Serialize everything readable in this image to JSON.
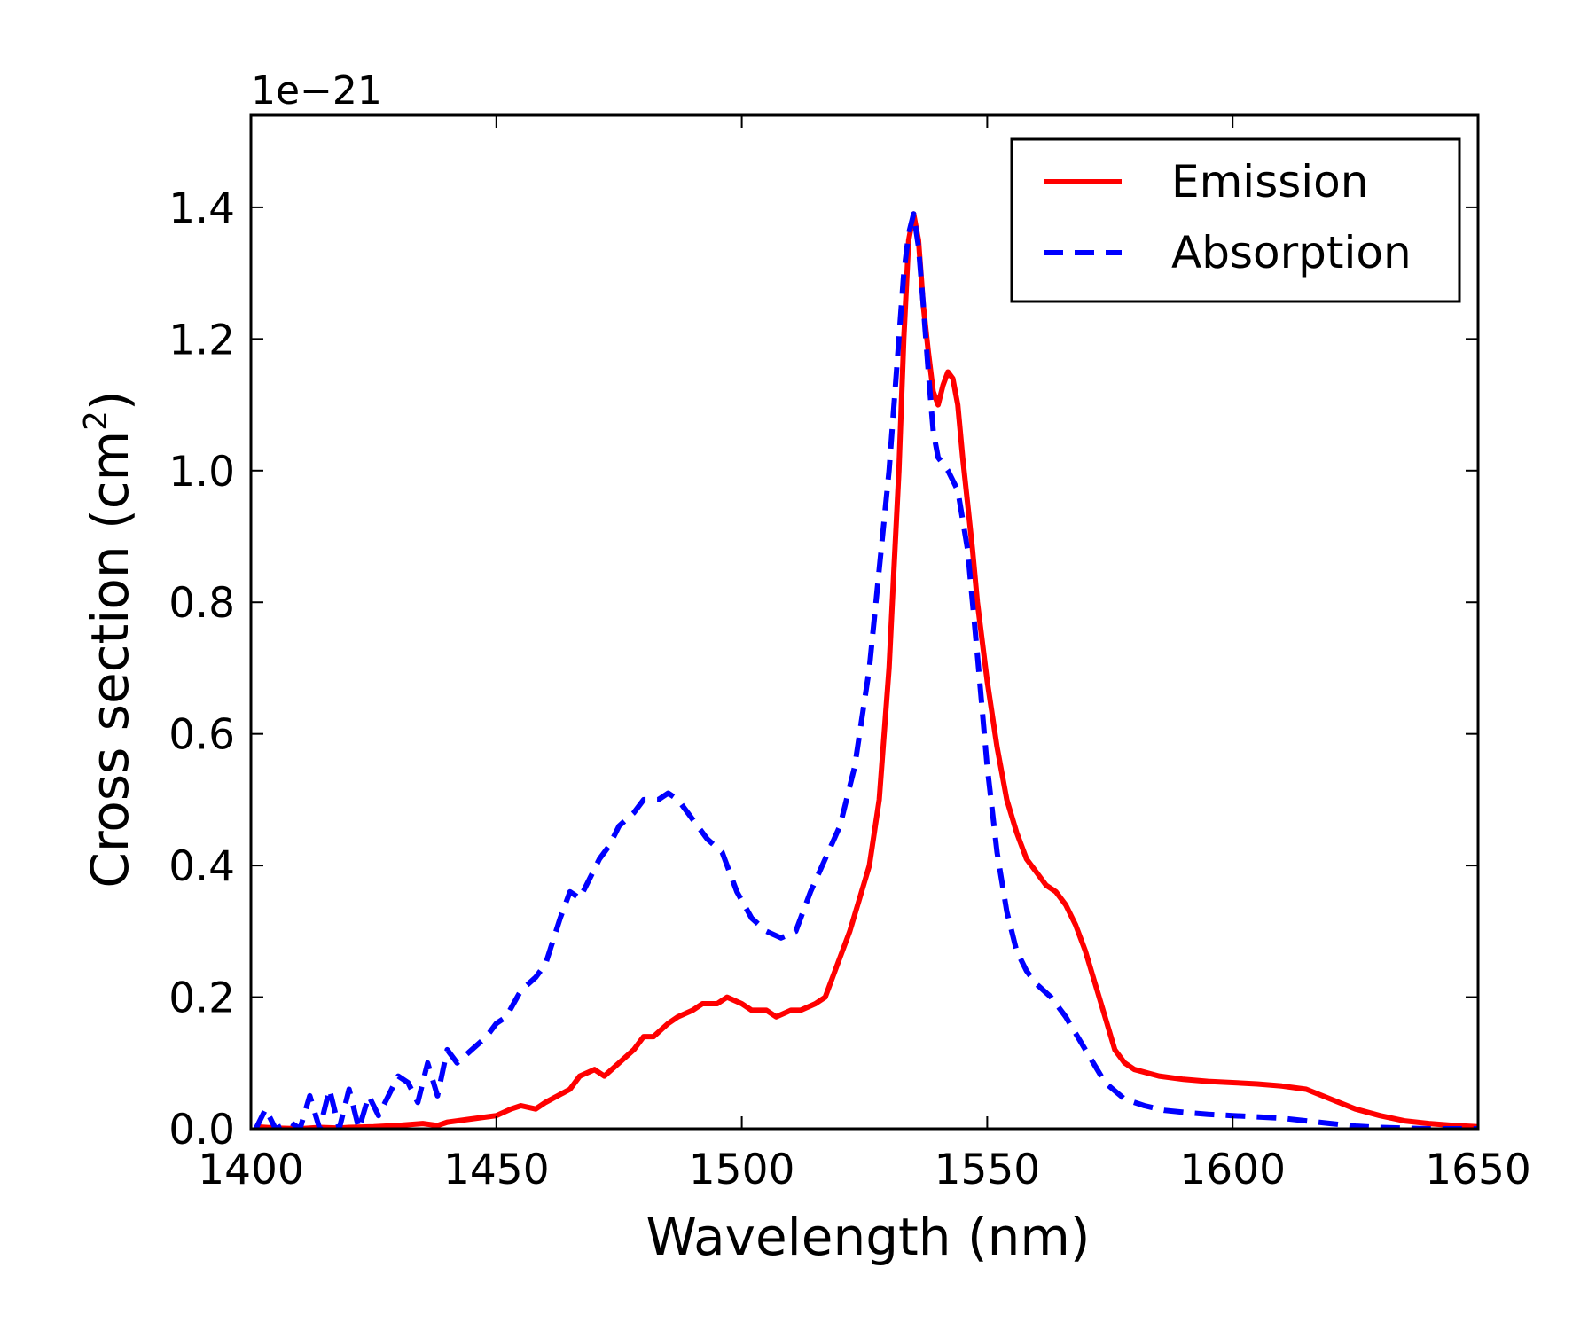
{
  "chart_data": {
    "type": "line",
    "title": "",
    "xlabel": "Wavelength (nm)",
    "ylabel_main": "Cross section (cm",
    "ylabel_sup": "2",
    "ylabel_close": ")",
    "offset_label": "1e−21",
    "xlim": [
      1400,
      1650
    ],
    "ylim": [
      0.0,
      1.54
    ],
    "xticks": [
      1400,
      1450,
      1500,
      1550,
      1600,
      1650
    ],
    "xtick_labels": [
      "1400",
      "1450",
      "1500",
      "1550",
      "1600",
      "1650"
    ],
    "yticks": [
      0.0,
      0.2,
      0.4,
      0.6,
      0.8,
      1.0,
      1.2,
      1.4
    ],
    "ytick_labels": [
      "0.0",
      "0.2",
      "0.4",
      "0.6",
      "0.8",
      "1.0",
      "1.2",
      "1.4"
    ],
    "legend_position": "top-right",
    "grid": false,
    "series": [
      {
        "name": "Emission",
        "color": "#ff0000",
        "style": "solid",
        "x": [
          1401,
          1405,
          1410,
          1414,
          1418,
          1420,
          1425,
          1430,
          1435,
          1438,
          1440,
          1445,
          1450,
          1453,
          1455,
          1458,
          1460,
          1465,
          1467,
          1470,
          1472,
          1475,
          1478,
          1480,
          1482,
          1485,
          1487,
          1490,
          1492,
          1495,
          1497,
          1500,
          1502,
          1505,
          1507,
          1510,
          1512,
          1515,
          1517,
          1520,
          1522,
          1524,
          1526,
          1528,
          1530,
          1531,
          1532,
          1533,
          1534,
          1535,
          1536,
          1537,
          1538,
          1539,
          1540,
          1541,
          1542,
          1543,
          1544,
          1545,
          1546,
          1547,
          1548,
          1550,
          1552,
          1554,
          1556,
          1558,
          1560,
          1562,
          1564,
          1566,
          1568,
          1570,
          1572,
          1574,
          1576,
          1578,
          1580,
          1585,
          1590,
          1595,
          1600,
          1605,
          1610,
          1615,
          1620,
          1625,
          1630,
          1635,
          1640,
          1645,
          1650
        ],
        "values": [
          0.003,
          0.001,
          0.0,
          0.002,
          0.001,
          0.002,
          0.003,
          0.005,
          0.008,
          0.005,
          0.01,
          0.015,
          0.02,
          0.03,
          0.035,
          0.03,
          0.04,
          0.06,
          0.08,
          0.09,
          0.08,
          0.1,
          0.12,
          0.14,
          0.14,
          0.16,
          0.17,
          0.18,
          0.19,
          0.19,
          0.2,
          0.19,
          0.18,
          0.18,
          0.17,
          0.18,
          0.18,
          0.19,
          0.2,
          0.26,
          0.3,
          0.35,
          0.4,
          0.5,
          0.7,
          0.85,
          1.0,
          1.2,
          1.35,
          1.39,
          1.35,
          1.25,
          1.18,
          1.12,
          1.1,
          1.13,
          1.15,
          1.14,
          1.1,
          1.02,
          0.95,
          0.88,
          0.8,
          0.68,
          0.58,
          0.5,
          0.45,
          0.41,
          0.39,
          0.37,
          0.36,
          0.34,
          0.31,
          0.27,
          0.22,
          0.17,
          0.12,
          0.1,
          0.09,
          0.08,
          0.075,
          0.072,
          0.07,
          0.068,
          0.065,
          0.06,
          0.045,
          0.03,
          0.02,
          0.012,
          0.008,
          0.005,
          0.003
        ]
      },
      {
        "name": "Absorption",
        "color": "#0000ff",
        "style": "dashed",
        "x": [
          1401,
          1403,
          1405,
          1408,
          1410,
          1412,
          1414,
          1416,
          1418,
          1420,
          1422,
          1424,
          1426,
          1428,
          1430,
          1432,
          1434,
          1436,
          1438,
          1440,
          1442,
          1445,
          1448,
          1450,
          1452,
          1455,
          1458,
          1460,
          1463,
          1465,
          1467,
          1469,
          1471,
          1473,
          1475,
          1478,
          1480,
          1483,
          1485,
          1487,
          1489,
          1491,
          1493,
          1496,
          1499,
          1502,
          1505,
          1508,
          1511,
          1514,
          1517,
          1520,
          1523,
          1526,
          1528,
          1530,
          1532,
          1533,
          1534,
          1535,
          1536,
          1537,
          1538,
          1539,
          1540,
          1542,
          1544,
          1546,
          1548,
          1550,
          1552,
          1554,
          1556,
          1558,
          1560,
          1563,
          1566,
          1570,
          1574,
          1578,
          1582,
          1586,
          1590,
          1595,
          1600,
          1605,
          1610,
          1615,
          1620,
          1625,
          1630,
          1635,
          1640,
          1645,
          1650
        ],
        "values": [
          0.0,
          0.03,
          0.0,
          0.01,
          0.0,
          0.05,
          0.0,
          0.06,
          0.0,
          0.06,
          0.0,
          0.05,
          0.02,
          0.05,
          0.08,
          0.07,
          0.04,
          0.1,
          0.05,
          0.12,
          0.1,
          0.12,
          0.14,
          0.16,
          0.17,
          0.21,
          0.23,
          0.25,
          0.32,
          0.36,
          0.35,
          0.38,
          0.41,
          0.43,
          0.46,
          0.48,
          0.5,
          0.5,
          0.51,
          0.5,
          0.48,
          0.46,
          0.44,
          0.42,
          0.36,
          0.32,
          0.3,
          0.29,
          0.3,
          0.36,
          0.41,
          0.46,
          0.55,
          0.7,
          0.85,
          1.0,
          1.2,
          1.3,
          1.36,
          1.39,
          1.34,
          1.25,
          1.15,
          1.06,
          1.02,
          1.0,
          0.97,
          0.88,
          0.72,
          0.55,
          0.42,
          0.33,
          0.27,
          0.24,
          0.22,
          0.2,
          0.17,
          0.12,
          0.07,
          0.045,
          0.035,
          0.028,
          0.025,
          0.022,
          0.02,
          0.018,
          0.016,
          0.012,
          0.008,
          0.004,
          0.002,
          0.001,
          0.0,
          0.0,
          0.0
        ]
      }
    ]
  }
}
